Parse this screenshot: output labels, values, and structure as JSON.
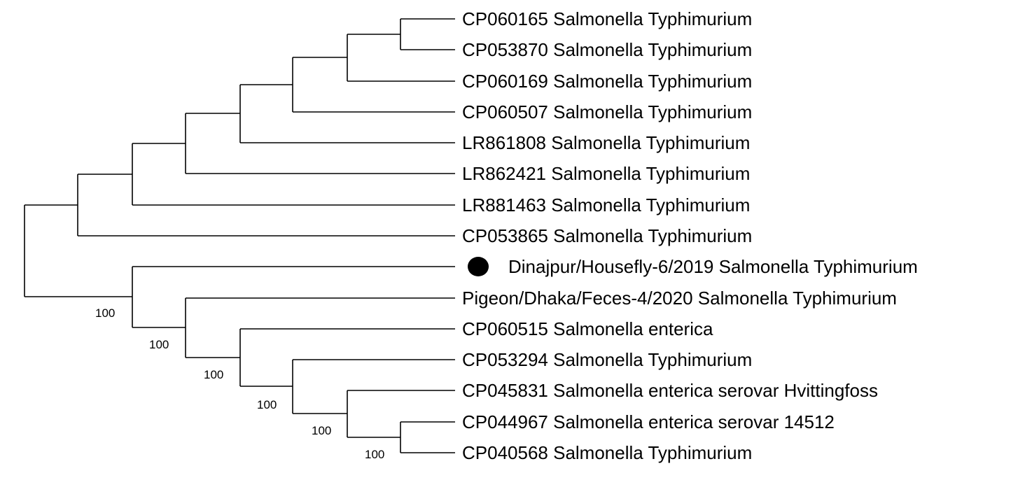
{
  "tree": {
    "leaves": [
      {
        "label": "CP060165 Salmonella Typhimurium"
      },
      {
        "label": "CP053870 Salmonella Typhimurium"
      },
      {
        "label": "CP060169 Salmonella Typhimurium"
      },
      {
        "label": "CP060507 Salmonella Typhimurium"
      },
      {
        "label": "LR861808 Salmonella Typhimurium"
      },
      {
        "label": "LR862421 Salmonella Typhimurium"
      },
      {
        "label": "LR881463 Salmonella Typhimurium"
      },
      {
        "label": "CP053865 Salmonella Typhimurium"
      },
      {
        "label": "Dinajpur/Housefly-6/2019 Salmonella Typhimurium",
        "marker": "filled-circle"
      },
      {
        "label": "Pigeon/Dhaka/Feces-4/2020 Salmonella Typhimurium"
      },
      {
        "label": "CP060515 Salmonella enterica"
      },
      {
        "label": "CP053294 Salmonella Typhimurium"
      },
      {
        "label": "CP045831 Salmonella enterica serovar Hvittingfoss"
      },
      {
        "label": "CP044967 Salmonella enterica serovar 14512"
      },
      {
        "label": "CP040568 Salmonella Typhimurium"
      }
    ],
    "bootstrap_values": [
      "100",
      "100",
      "100",
      "100",
      "100",
      "100"
    ],
    "marker_color": "#000000",
    "line_color": "#000000"
  }
}
